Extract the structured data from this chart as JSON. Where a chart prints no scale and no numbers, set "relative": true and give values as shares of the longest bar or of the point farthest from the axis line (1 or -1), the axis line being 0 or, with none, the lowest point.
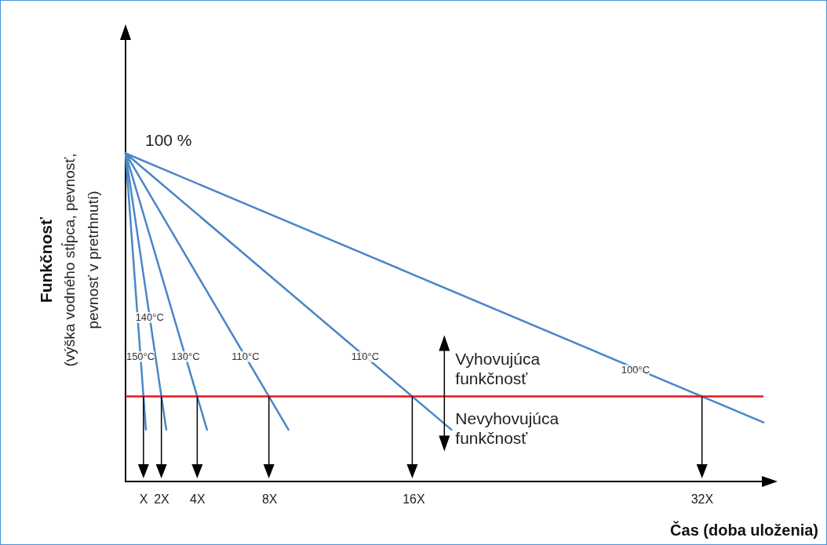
{
  "chart_data": {
    "type": "line",
    "relative": true,
    "xlabel": "Čas (doba uloženia)",
    "ylabel": "Funkčnosť\n(výška vodného stĺpca, pevnosť,\npevnosť v pretrhnutí)",
    "xlim": [
      0,
      35.4
    ],
    "xticks": [
      {
        "value": 1,
        "label": "X"
      },
      {
        "value": 2,
        "label": "2X"
      },
      {
        "value": 4,
        "label": "4X"
      },
      {
        "value": 8,
        "label": "8X"
      },
      {
        "value": 16,
        "label": "16X"
      },
      {
        "value": 32,
        "label": "32X"
      }
    ],
    "series": [
      {
        "color": "#4a86c8",
        "x": [
          0,
          1.13
        ],
        "values": [
          1,
          0.158
        ]
      },
      {
        "color": "#4a86c8",
        "x": [
          0,
          2.26
        ],
        "values": [
          1,
          0.158
        ]
      },
      {
        "color": "#4a86c8",
        "x": [
          0,
          4.52
        ],
        "values": [
          1,
          0.158
        ]
      },
      {
        "color": "#4a86c8",
        "x": [
          0,
          9.04
        ],
        "values": [
          1,
          0.158
        ]
      },
      {
        "color": "#4a86c8",
        "x": [
          0,
          18.08
        ],
        "values": [
          1,
          0.158
        ]
      },
      {
        "color": "#4a86c8",
        "x": [
          0,
          35.4
        ],
        "values": [
          1,
          0.18
        ]
      }
    ],
    "ref_lines": [
      {
        "axis": "y",
        "value": 0.259,
        "color": "#e8141c"
      }
    ],
    "annotations": [
      {
        "text": "100 %",
        "x": 0,
        "y": 1
      },
      {
        "text": "150°C",
        "x": 0.83,
        "y": 0.38
      },
      {
        "text": "140°C",
        "x": 1.34,
        "y": 0.5
      },
      {
        "text": "130°C",
        "x": 3.33,
        "y": 0.38
      },
      {
        "text": "110°C",
        "x": 6.66,
        "y": 0.38
      },
      {
        "text": "110°C",
        "x": 13.3,
        "y": 0.38
      },
      {
        "text": "100°C",
        "x": 28.3,
        "y": 0.34
      },
      "Vyhovujúca\nfunkčnosť",
      "Nevyhovujúca\nfunkčnosť"
    ],
    "grid": false,
    "marker": "none",
    "line_style": "solid"
  }
}
